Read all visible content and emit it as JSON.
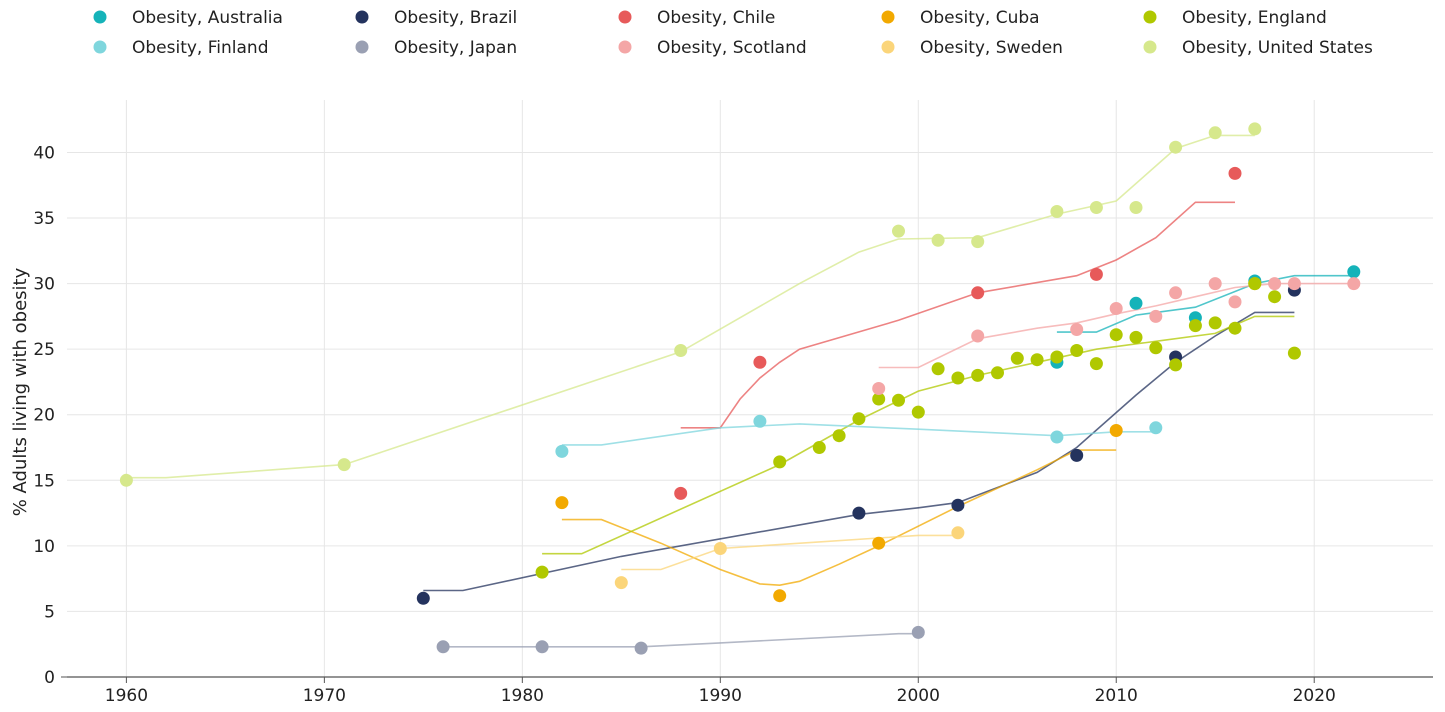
{
  "chart_data": {
    "type": "scatter",
    "title": "",
    "xlabel": "",
    "ylabel": "% Adults living with obesity",
    "xlim": [
      1957,
      2026
    ],
    "ylim": [
      0,
      44
    ],
    "x_ticks": [
      "1960",
      "1970",
      "1980",
      "1990",
      "2000",
      "2010",
      "2020"
    ],
    "y_ticks": [
      "0",
      "5",
      "10",
      "15",
      "20",
      "25",
      "30",
      "35",
      "40"
    ],
    "grid": true,
    "legend_position": "top",
    "series": [
      {
        "name": "Obesity, Australia",
        "color": "#15b3b9",
        "points": [
          [
            2007,
            24.0
          ],
          [
            2011,
            28.5
          ],
          [
            2014,
            27.4
          ],
          [
            2017,
            30.2
          ],
          [
            2022,
            30.9
          ]
        ],
        "trend": [
          [
            2007,
            26.3
          ],
          [
            2009,
            26.3
          ],
          [
            2011,
            27.6
          ],
          [
            2014,
            28.2
          ],
          [
            2017,
            30.0
          ],
          [
            2019,
            30.6
          ],
          [
            2022,
            30.6
          ]
        ]
      },
      {
        "name": "Obesity, Brazil",
        "color": "#24335e",
        "points": [
          [
            1975,
            6.0
          ],
          [
            1997,
            12.5
          ],
          [
            2002,
            13.1
          ],
          [
            2008,
            16.9
          ],
          [
            2013,
            24.4
          ],
          [
            2019,
            29.5
          ]
        ],
        "trend": [
          [
            1975,
            6.6
          ],
          [
            1977,
            6.6
          ],
          [
            1985,
            9.2
          ],
          [
            1997,
            12.4
          ],
          [
            2000,
            12.9
          ],
          [
            2002,
            13.3
          ],
          [
            2006,
            15.6
          ],
          [
            2008,
            17.5
          ],
          [
            2011,
            21.5
          ],
          [
            2013,
            24.0
          ],
          [
            2015,
            26.0
          ],
          [
            2017,
            27.8
          ],
          [
            2019,
            27.8
          ]
        ]
      },
      {
        "name": "Obesity, Chile",
        "color": "#e75a5a",
        "points": [
          [
            1988,
            14.0
          ],
          [
            1992,
            24.0
          ],
          [
            2003,
            29.3
          ],
          [
            2009,
            30.7
          ],
          [
            2016,
            38.4
          ]
        ],
        "trend": [
          [
            1988,
            19.0
          ],
          [
            1990,
            19.0
          ],
          [
            1991,
            21.2
          ],
          [
            1992,
            22.8
          ],
          [
            1993,
            24.0
          ],
          [
            1994,
            25.0
          ],
          [
            1999,
            27.2
          ],
          [
            2003,
            29.3
          ],
          [
            2008,
            30.6
          ],
          [
            2010,
            31.8
          ],
          [
            2012,
            33.5
          ],
          [
            2014,
            36.2
          ],
          [
            2016,
            36.2
          ]
        ]
      },
      {
        "name": "Obesity, Cuba",
        "color": "#f2a900",
        "points": [
          [
            1982,
            13.3
          ],
          [
            1993,
            6.2
          ],
          [
            1998,
            10.2
          ],
          [
            2010,
            18.8
          ],
          [
            2017,
            30.0
          ]
        ],
        "trend": [
          [
            1982,
            12.0
          ],
          [
            1984,
            12.0
          ],
          [
            1987,
            10.2
          ],
          [
            1990,
            8.2
          ],
          [
            1992,
            7.1
          ],
          [
            1993,
            7.0
          ],
          [
            1994,
            7.3
          ],
          [
            1996,
            8.6
          ],
          [
            1998,
            10.0
          ],
          [
            2002,
            13.0
          ],
          [
            2006,
            15.8
          ],
          [
            2008,
            17.3
          ],
          [
            2010,
            17.3
          ]
        ]
      },
      {
        "name": "Obesity, England",
        "color": "#b0c800",
        "points": [
          [
            1981,
            8.0
          ],
          [
            1993,
            16.4
          ],
          [
            1995,
            17.5
          ],
          [
            1996,
            18.4
          ],
          [
            1997,
            19.7
          ],
          [
            1998,
            21.2
          ],
          [
            1999,
            21.1
          ],
          [
            2000,
            20.2
          ],
          [
            2001,
            23.5
          ],
          [
            2002,
            22.8
          ],
          [
            2003,
            23.0
          ],
          [
            2004,
            23.2
          ],
          [
            2005,
            24.3
          ],
          [
            2006,
            24.2
          ],
          [
            2007,
            24.4
          ],
          [
            2008,
            24.9
          ],
          [
            2009,
            23.9
          ],
          [
            2010,
            26.1
          ],
          [
            2011,
            25.9
          ],
          [
            2012,
            25.1
          ],
          [
            2013,
            23.8
          ],
          [
            2014,
            26.8
          ],
          [
            2015,
            27.0
          ],
          [
            2016,
            26.6
          ],
          [
            2017,
            30.0
          ],
          [
            2018,
            29.0
          ],
          [
            2019,
            24.7
          ]
        ],
        "trend": [
          [
            1981,
            9.4
          ],
          [
            1983,
            9.4
          ],
          [
            1993,
            16.2
          ],
          [
            1997,
            19.6
          ],
          [
            2000,
            21.8
          ],
          [
            2003,
            23.0
          ],
          [
            2006,
            24.0
          ],
          [
            2009,
            25.0
          ],
          [
            2012,
            25.6
          ],
          [
            2015,
            26.2
          ],
          [
            2017,
            27.5
          ],
          [
            2019,
            27.5
          ]
        ]
      },
      {
        "name": "Obesity, Finland",
        "color": "#7fd6dd",
        "points": [
          [
            1982,
            17.2
          ],
          [
            1992,
            19.5
          ],
          [
            2007,
            18.3
          ],
          [
            2012,
            19.0
          ]
        ],
        "trend": [
          [
            1982,
            17.7
          ],
          [
            1984,
            17.7
          ],
          [
            1990,
            19.0
          ],
          [
            1994,
            19.3
          ],
          [
            2000,
            18.9
          ],
          [
            2007,
            18.4
          ],
          [
            2010,
            18.7
          ],
          [
            2012,
            18.7
          ]
        ]
      },
      {
        "name": "Obesity, Japan",
        "color": "#9aa0b3",
        "points": [
          [
            1976,
            2.3
          ],
          [
            1981,
            2.3
          ],
          [
            1986,
            2.2
          ],
          [
            2000,
            3.4
          ]
        ],
        "trend": [
          [
            1976,
            2.3
          ],
          [
            1986,
            2.3
          ],
          [
            1990,
            2.6
          ],
          [
            1999,
            3.3
          ],
          [
            2000,
            3.3
          ]
        ]
      },
      {
        "name": "Obesity, Scotland",
        "color": "#f4a6a6",
        "points": [
          [
            1998,
            22.0
          ],
          [
            2003,
            26.0
          ],
          [
            2008,
            26.5
          ],
          [
            2010,
            28.1
          ],
          [
            2012,
            27.5
          ],
          [
            2013,
            29.3
          ],
          [
            2015,
            30.0
          ],
          [
            2016,
            28.6
          ],
          [
            2018,
            30.0
          ],
          [
            2019,
            30.0
          ],
          [
            2022,
            30.0
          ]
        ],
        "trend": [
          [
            1998,
            23.6
          ],
          [
            2000,
            23.6
          ],
          [
            2003,
            25.8
          ],
          [
            2006,
            26.6
          ],
          [
            2008,
            27.0
          ],
          [
            2010,
            27.7
          ],
          [
            2012,
            28.3
          ],
          [
            2014,
            29.0
          ],
          [
            2016,
            29.7
          ],
          [
            2018,
            30.0
          ],
          [
            2022,
            30.0
          ]
        ]
      },
      {
        "name": "Obesity, Sweden",
        "color": "#fbd57a",
        "points": [
          [
            1985,
            7.2
          ],
          [
            1990,
            9.8
          ],
          [
            2002,
            11.0
          ]
        ],
        "trend": [
          [
            1985,
            8.2
          ],
          [
            1987,
            8.2
          ],
          [
            1990,
            9.8
          ],
          [
            1995,
            10.3
          ],
          [
            2000,
            10.8
          ],
          [
            2002,
            10.8
          ]
        ]
      },
      {
        "name": "Obesity, United States",
        "color": "#d6e88c",
        "points": [
          [
            1960,
            15.0
          ],
          [
            1971,
            16.2
          ],
          [
            1988,
            24.9
          ],
          [
            1999,
            34.0
          ],
          [
            2001,
            33.3
          ],
          [
            2003,
            33.2
          ],
          [
            2007,
            35.5
          ],
          [
            2009,
            35.8
          ],
          [
            2011,
            35.8
          ],
          [
            2013,
            40.4
          ],
          [
            2015,
            41.5
          ],
          [
            2017,
            41.8
          ]
        ],
        "trend": [
          [
            1960,
            15.2
          ],
          [
            1962,
            15.2
          ],
          [
            1971,
            16.2
          ],
          [
            1973,
            17.2
          ],
          [
            1988,
            24.8
          ],
          [
            1994,
            30.0
          ],
          [
            1997,
            32.4
          ],
          [
            1999,
            33.4
          ],
          [
            2003,
            33.5
          ],
          [
            2007,
            35.3
          ],
          [
            2010,
            36.3
          ],
          [
            2013,
            40.3
          ],
          [
            2015,
            41.3
          ],
          [
            2017,
            41.3
          ]
        ]
      }
    ]
  }
}
